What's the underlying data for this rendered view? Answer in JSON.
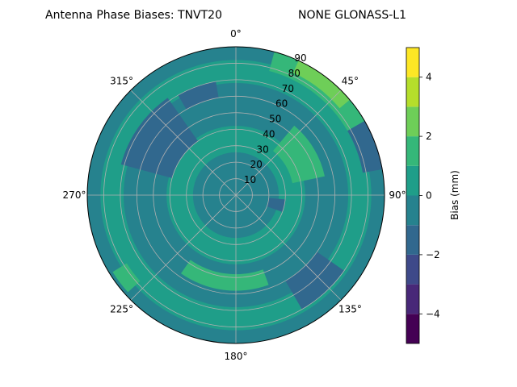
{
  "chart_data": {
    "type": "heatmap",
    "projection": "polar",
    "title_left": "Antenna Phase Biases: TNVT20",
    "title_right": "NONE GLONASS-L1",
    "angular_ticks": [
      "0°",
      "45°",
      "90°",
      "135°",
      "180°",
      "225°",
      "270°",
      "315°"
    ],
    "angular_tick_values": [
      0,
      45,
      90,
      135,
      180,
      225,
      270,
      315
    ],
    "radial_ticks": [
      "10",
      "20",
      "30",
      "40",
      "50",
      "60",
      "70",
      "80",
      "90"
    ],
    "radial_tick_values": [
      10,
      20,
      30,
      40,
      50,
      60,
      70,
      80,
      90
    ],
    "rlim": [
      0,
      90
    ],
    "grid": true,
    "colorbar": {
      "label": "Bias (mm)",
      "range": [
        -5,
        5
      ],
      "levels": [
        -5,
        -4,
        -3,
        -2,
        -1,
        0,
        1,
        2,
        3,
        4,
        5
      ],
      "ticks": [
        "−4",
        "−2",
        "0",
        "2",
        "4"
      ],
      "tick_values": [
        -4,
        -2,
        0,
        2,
        4
      ],
      "colors": [
        "#440154",
        "#482878",
        "#3e4989",
        "#31688e",
        "#26828e",
        "#1f9e89",
        "#35b779",
        "#6ece58",
        "#b5de2b",
        "#fde725"
      ]
    },
    "regions": [
      {
        "level": 0,
        "color": "#26828e",
        "az": [
          0,
          360
        ],
        "r": [
          0,
          90
        ]
      },
      {
        "level": 1,
        "color": "#1f9e89",
        "az": [
          0,
          360
        ],
        "r": [
          68,
          82
        ]
      },
      {
        "level": 1,
        "color": "#1f9e89",
        "az": [
          0,
          360
        ],
        "r": [
          26,
          42
        ]
      },
      {
        "level": 2,
        "color": "#35b779",
        "az": [
          15,
          60
        ],
        "r": [
          78,
          90
        ]
      },
      {
        "level": 3,
        "color": "#6ece58",
        "az": [
          25,
          50
        ],
        "r": [
          82,
          90
        ]
      },
      {
        "level": 2,
        "color": "#35b779",
        "az": [
          40,
          78
        ],
        "r": [
          35,
          55
        ]
      },
      {
        "level": 2,
        "color": "#35b779",
        "az": [
          160,
          215
        ],
        "r": [
          48,
          58
        ]
      },
      {
        "level": 2,
        "color": "#35b779",
        "az": [
          228,
          238
        ],
        "r": [
          78,
          88
        ]
      },
      {
        "level": -1,
        "color": "#31688e",
        "az": [
          285,
          325
        ],
        "r": [
          40,
          72
        ]
      },
      {
        "level": -1,
        "color": "#31688e",
        "az": [
          95,
          110
        ],
        "r": [
          20,
          30
        ]
      },
      {
        "level": -1,
        "color": "#31688e",
        "az": [
          125,
          150
        ],
        "r": [
          60,
          80
        ]
      },
      {
        "level": -1,
        "color": "#31688e",
        "az": [
          330,
          350
        ],
        "r": [
          60,
          70
        ]
      },
      {
        "level": -1,
        "color": "#31688e",
        "az": [
          60,
          80
        ],
        "r": [
          78,
          90
        ]
      },
      {
        "level": 0,
        "color": "#26828e",
        "az": [
          0,
          360
        ],
        "r": [
          0,
          16
        ]
      }
    ]
  }
}
